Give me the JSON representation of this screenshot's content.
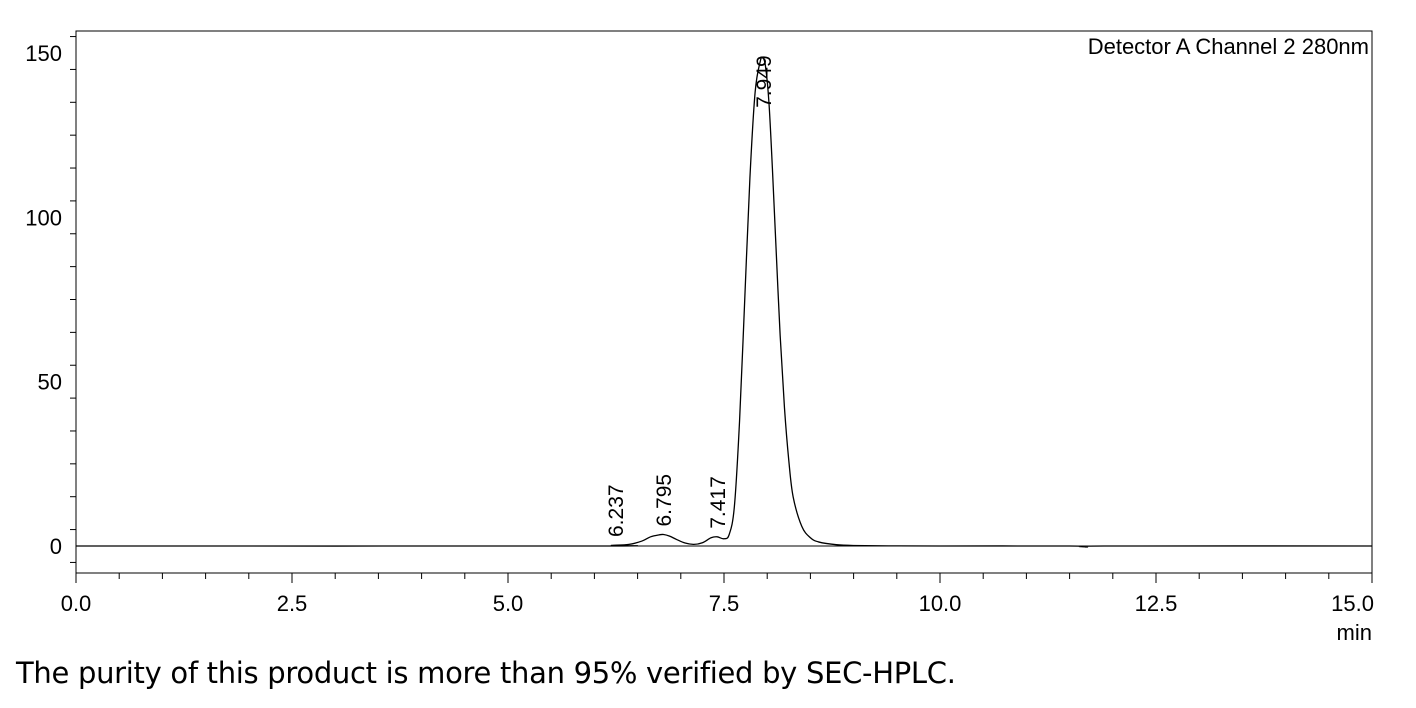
{
  "chart_data": {
    "type": "line",
    "detector_label": "Detector A Channel 2 280nm",
    "xlabel": "min",
    "ylabel": "",
    "xlim": [
      0.0,
      15.0
    ],
    "ylim": [
      -8,
      157
    ],
    "x_ticks": [
      "0.0",
      "2.5",
      "5.0",
      "7.5",
      "10.0",
      "12.5",
      "15.0"
    ],
    "y_ticks": [
      "0",
      "50",
      "100",
      "150"
    ],
    "grid": false,
    "peaks": [
      {
        "rt": "6.237",
        "x": 6.237,
        "height": 0.3
      },
      {
        "rt": "6.795",
        "x": 6.795,
        "height": 3.5
      },
      {
        "rt": "7.417",
        "x": 7.417,
        "height": 2.8
      },
      {
        "rt": "7.949",
        "x": 7.949,
        "height": 148.5
      }
    ],
    "series": [
      {
        "x": [
          0.0,
          6.0,
          6.2,
          6.4,
          6.55,
          6.65,
          6.75,
          6.8,
          6.87,
          6.95,
          7.05,
          7.15,
          7.25,
          7.35,
          7.42,
          7.5,
          7.56,
          7.62,
          7.68,
          7.74,
          7.8,
          7.86,
          7.92,
          7.95,
          7.98,
          8.02,
          8.06,
          8.1,
          8.15,
          8.2,
          8.25,
          8.3,
          8.4,
          8.5,
          8.6,
          8.8,
          9.0,
          9.4,
          10.0,
          11.5,
          11.7,
          11.9,
          15.0
        ],
        "y": [
          0,
          0,
          0.2,
          0.5,
          1.5,
          2.8,
          3.4,
          3.5,
          3.0,
          2.0,
          0.9,
          0.5,
          1.0,
          2.5,
          2.8,
          2.2,
          3.5,
          12,
          38,
          75,
          112,
          138,
          147.5,
          148.5,
          146,
          135,
          115,
          92,
          64,
          42,
          26,
          15,
          6,
          2.5,
          1.2,
          0.4,
          0.15,
          0.05,
          0,
          0,
          -0.3,
          0,
          0
        ]
      }
    ]
  },
  "caption": "The purity of this product is more than 95% verified by SEC-HPLC."
}
